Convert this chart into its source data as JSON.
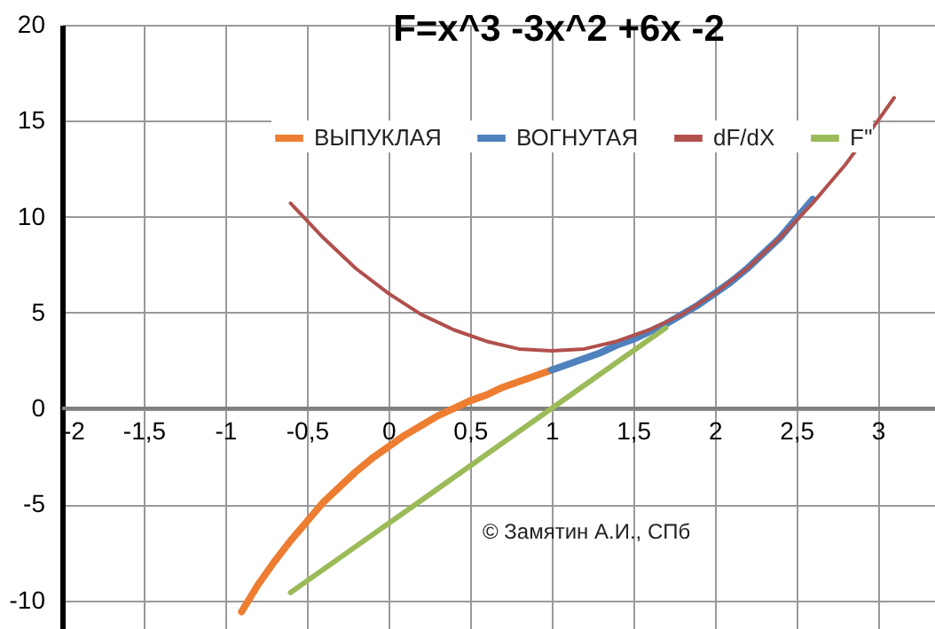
{
  "chart_data": {
    "type": "line",
    "title": "F=x^3 -3x^2 +6x -2",
    "xlim": [
      -2,
      3.35
    ],
    "ylim": [
      -11.5,
      20
    ],
    "xticks": [
      -2,
      {
        "value": -1.5,
        "label": "-1,5"
      },
      -1,
      {
        "value": -0.5,
        "label": "-0,5"
      },
      0,
      {
        "value": 0.5,
        "label": "0,5"
      },
      1,
      {
        "value": 1.5,
        "label": "1,5"
      },
      2,
      {
        "value": 2.5,
        "label": "2,5"
      },
      3
    ],
    "yticks": [
      -10,
      -5,
      0,
      5,
      10,
      15,
      20
    ],
    "grid": true,
    "legend": "top",
    "annotations": [
      "© Замятин А.И., СПб"
    ],
    "series": [
      {
        "name": "ВЫПУКЛАЯ",
        "color": "#ed7d31",
        "x": [
          -0.9,
          -0.8,
          -0.7,
          -0.6,
          -0.5,
          -0.4,
          -0.3,
          -0.2,
          -0.1,
          0,
          0.1,
          0.2,
          0.3,
          0.4,
          0.5,
          0.6,
          0.7,
          0.8,
          0.9,
          1
        ],
        "values": [
          -10.6,
          -9.2,
          -8.0,
          -6.9,
          -5.9,
          -4.9,
          -4.1,
          -3.3,
          -2.6,
          -2.0,
          -1.4,
          -0.9,
          -0.4,
          0.0,
          0.4,
          0.7,
          1.1,
          1.4,
          1.7,
          2.0
        ]
      },
      {
        "name": "ВОГНУТАЯ",
        "color": "#4f81bd",
        "x": [
          1,
          1.1,
          1.2,
          1.3,
          1.4,
          1.5,
          1.6,
          1.7,
          1.8,
          1.9,
          2,
          2.1,
          2.2,
          2.3,
          2.4,
          2.5,
          2.6
        ],
        "values": [
          2.0,
          2.3,
          2.6,
          2.9,
          3.3,
          3.6,
          4.0,
          4.4,
          4.9,
          5.4,
          6.0,
          6.6,
          7.3,
          8.1,
          8.9,
          9.9,
          10.9
        ]
      },
      {
        "name": "dF/dX",
        "color": "#b0504d",
        "x": [
          -0.6,
          -0.4,
          -0.2,
          0,
          0.2,
          0.4,
          0.6,
          0.8,
          1,
          1.2,
          1.4,
          1.6,
          1.8,
          2,
          2.2,
          2.4,
          2.6,
          2.8,
          3,
          3.1
        ],
        "values": [
          10.7,
          8.9,
          7.3,
          6.0,
          4.9,
          4.1,
          3.5,
          3.1,
          3.0,
          3.1,
          3.5,
          4.1,
          4.9,
          6.0,
          7.3,
          8.9,
          10.7,
          12.7,
          15.0,
          16.2
        ]
      },
      {
        "name": "F''",
        "color": "#9bbb59",
        "x": [
          -0.6,
          -0.2,
          0.2,
          0.6,
          1,
          1.4,
          1.7
        ],
        "values": [
          -9.6,
          -7.2,
          -4.8,
          -2.4,
          0.0,
          2.4,
          4.2
        ]
      }
    ]
  }
}
